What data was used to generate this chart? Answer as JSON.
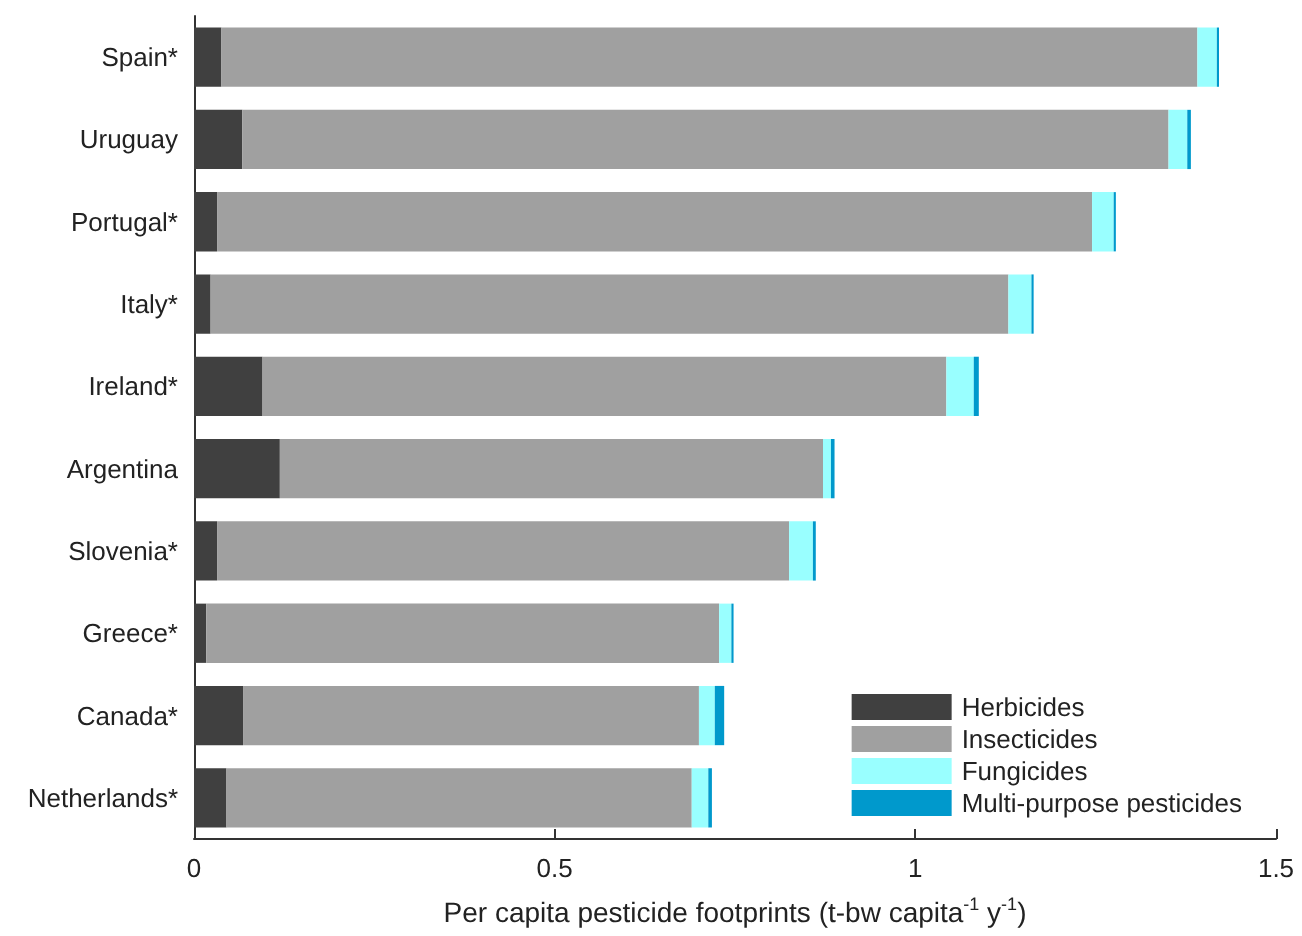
{
  "chart_data": {
    "type": "bar",
    "orientation": "horizontal",
    "stacked": true,
    "xlabel": "Per capita pesticide footprints (t-bw capita$^{-1}$ y$^{-1}$)",
    "categories": [
      "Spain*",
      "Uruguay",
      "Portugal*",
      "Italy*",
      "Ireland*",
      "Argentina",
      "Slovenia*",
      "Greece*",
      "Canada*",
      "Netherlands*"
    ],
    "series": [
      {
        "name": "Herbicides",
        "color": "#404040",
        "values": [
          0.038,
          0.067,
          0.032,
          0.023,
          0.095,
          0.119,
          0.032,
          0.017,
          0.068,
          0.045
        ]
      },
      {
        "name": "Insecticides",
        "color": "#a0a0a0",
        "values": [
          1.353,
          1.284,
          1.213,
          1.106,
          0.948,
          0.753,
          0.793,
          0.711,
          0.632,
          0.645
        ]
      },
      {
        "name": "Fungicides",
        "color": "#99ffff",
        "values": [
          0.027,
          0.026,
          0.03,
          0.032,
          0.038,
          0.011,
          0.033,
          0.017,
          0.022,
          0.023
        ]
      },
      {
        "name": "Multi-purpose pesticides",
        "color": "#0099cc",
        "values": [
          0.003,
          0.005,
          0.003,
          0.003,
          0.007,
          0.005,
          0.004,
          0.003,
          0.013,
          0.005
        ]
      }
    ],
    "xlim": [
      0,
      1.5
    ],
    "xticks": [
      0,
      0.5,
      1,
      1.5
    ],
    "grid": false,
    "legend": "bottom right"
  }
}
